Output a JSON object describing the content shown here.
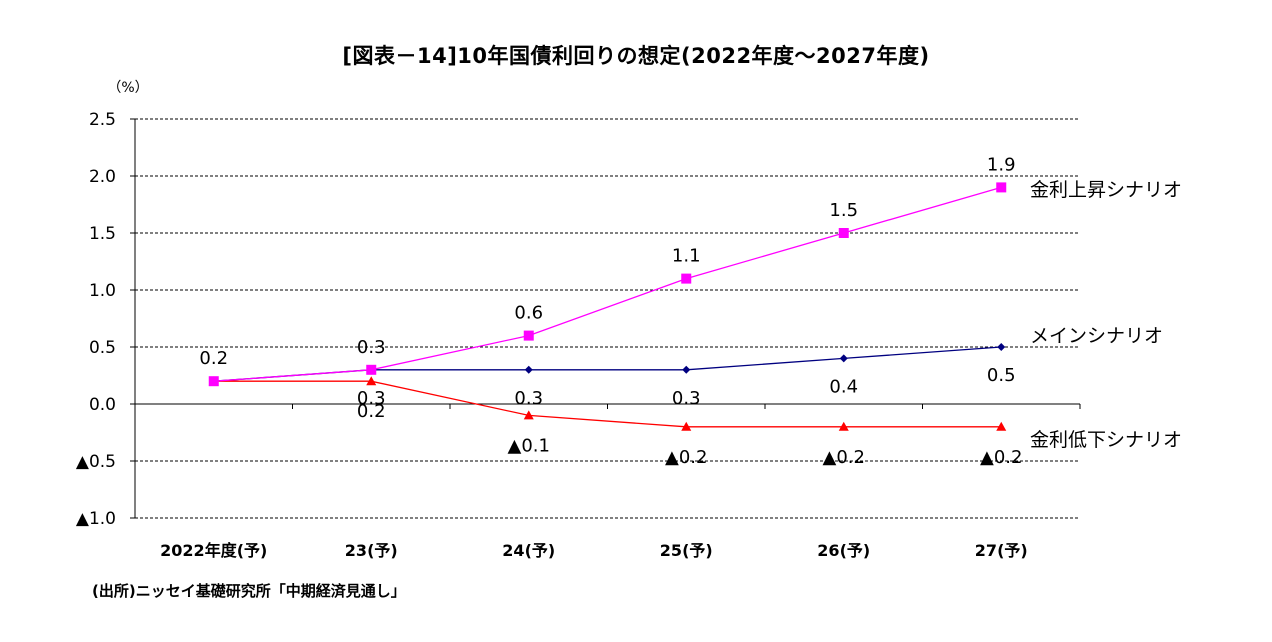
{
  "title": "[図表－14]10年国債利回りの想定(2022年度～2027年度)",
  "source_note": "(出所)ニッセイ基礎研究所「中期経済見通し」",
  "chart_data": {
    "type": "line",
    "title": "[図表－14]10年国債利回りの想定(2022年度～2027年度)",
    "xlabel": "",
    "ylabel": "",
    "unit_label": "（%）",
    "categories": [
      "2022年度(予)",
      "23(予)",
      "24(予)",
      "25(予)",
      "26(予)",
      "27(予)"
    ],
    "ylim": [
      -1.0,
      2.5
    ],
    "yticks": [
      2.5,
      2.0,
      1.5,
      1.0,
      0.5,
      0.0,
      -0.5,
      -1.0
    ],
    "ytick_labels": [
      "2.5",
      "2.0",
      "1.5",
      "1.0",
      "0.5",
      "0.0",
      "▲0.5",
      "▲1.0"
    ],
    "grid": true,
    "legend": "none (series labelled at right end of lines)",
    "series": [
      {
        "name": "金利上昇シナリオ",
        "values": [
          0.2,
          0.3,
          0.6,
          1.1,
          1.5,
          1.9
        ],
        "value_labels": [
          "0.2",
          "0.3",
          "0.6",
          "1.1",
          "1.5",
          "1.9"
        ],
        "color": "#ff00ff",
        "marker": "square"
      },
      {
        "name": "メインシナリオ",
        "values": [
          0.2,
          0.3,
          0.3,
          0.3,
          0.4,
          0.5
        ],
        "value_labels": [
          "",
          "0.3",
          "0.3",
          "0.3",
          "0.4",
          "0.5"
        ],
        "color": "#000080",
        "marker": "diamond"
      },
      {
        "name": "金利低下シナリオ",
        "values": [
          0.2,
          0.2,
          -0.1,
          -0.2,
          -0.2,
          -0.2
        ],
        "value_labels": [
          "",
          "0.2",
          "▲0.1",
          "▲0.2",
          "▲0.2",
          "▲0.2"
        ],
        "color": "#ff0000",
        "marker": "triangle"
      }
    ]
  }
}
